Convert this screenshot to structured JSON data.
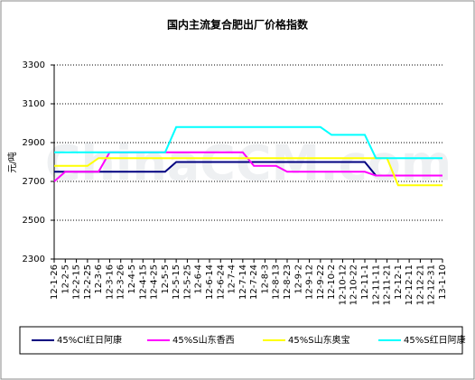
{
  "chart_data": {
    "type": "line",
    "title": "国内主流复合肥出厂价格指数",
    "y_label": "元/吨",
    "watermark": "ChinaCCM.com",
    "categories": [
      "12-1-26",
      "12-2-5",
      "12-2-15",
      "12-2-25",
      "12-3-6",
      "12-3-16",
      "12-3-26",
      "12-4-5",
      "12-4-15",
      "12-4-25",
      "12-5-5",
      "12-5-15",
      "12-5-25",
      "12-6-4",
      "12-6-14",
      "12-6-24",
      "12-7-4",
      "12-7-14",
      "12-7-24",
      "12-8-3",
      "12-8-13",
      "12-8-23",
      "12-9-2",
      "12-9-12",
      "12-9-22",
      "12-10-2",
      "12-10-12",
      "12-10-22",
      "12-11-1",
      "12-11-11",
      "12-11-21",
      "12-12-1",
      "12-12-11",
      "12-12-21",
      "12-12-31",
      "13-1-10"
    ],
    "series": [
      {
        "name": "45%Cl红日阿康",
        "color": "#000080",
        "values": [
          2750,
          2750,
          2750,
          2750,
          2750,
          2750,
          2750,
          2750,
          2750,
          2750,
          2750,
          2800,
          2800,
          2800,
          2800,
          2800,
          2800,
          2800,
          2800,
          2800,
          2800,
          2800,
          2800,
          2800,
          2800,
          2800,
          2800,
          2800,
          2800,
          2730,
          2730,
          2730,
          2730,
          2730,
          2730,
          2730
        ]
      },
      {
        "name": "45%S山东香西",
        "color": "#ff00ff",
        "values": [
          2700,
          2750,
          2750,
          2750,
          2750,
          2850,
          2850,
          2850,
          2850,
          2850,
          2850,
          2850,
          2850,
          2850,
          2850,
          2850,
          2850,
          2850,
          2780,
          2780,
          2780,
          2750,
          2750,
          2750,
          2750,
          2750,
          2750,
          2750,
          2750,
          2730,
          2730,
          2730,
          2730,
          2730,
          2730,
          2730
        ]
      },
      {
        "name": "45%S山东奥宝",
        "color": "#ffff00",
        "values": [
          2780,
          2780,
          2780,
          2780,
          2820,
          2820,
          2820,
          2820,
          2820,
          2820,
          2820,
          2820,
          2820,
          2820,
          2820,
          2820,
          2820,
          2820,
          2820,
          2820,
          2820,
          2820,
          2820,
          2820,
          2820,
          2820,
          2820,
          2820,
          2820,
          2820,
          2820,
          2680,
          2680,
          2680,
          2680,
          2680
        ]
      },
      {
        "name": "45%S红日阿康",
        "color": "#00ffff",
        "values": [
          2850,
          2850,
          2850,
          2850,
          2850,
          2850,
          2850,
          2850,
          2850,
          2850,
          2850,
          2980,
          2980,
          2980,
          2980,
          2980,
          2980,
          2980,
          2980,
          2980,
          2980,
          2980,
          2980,
          2980,
          2980,
          2940,
          2940,
          2940,
          2940,
          2820,
          2820,
          2820,
          2820,
          2820,
          2820,
          2820
        ]
      }
    ],
    "ylim": [
      2300,
      3300
    ],
    "yticks": [
      2300,
      2500,
      2700,
      2900,
      3100,
      3300
    ],
    "grid": true
  }
}
